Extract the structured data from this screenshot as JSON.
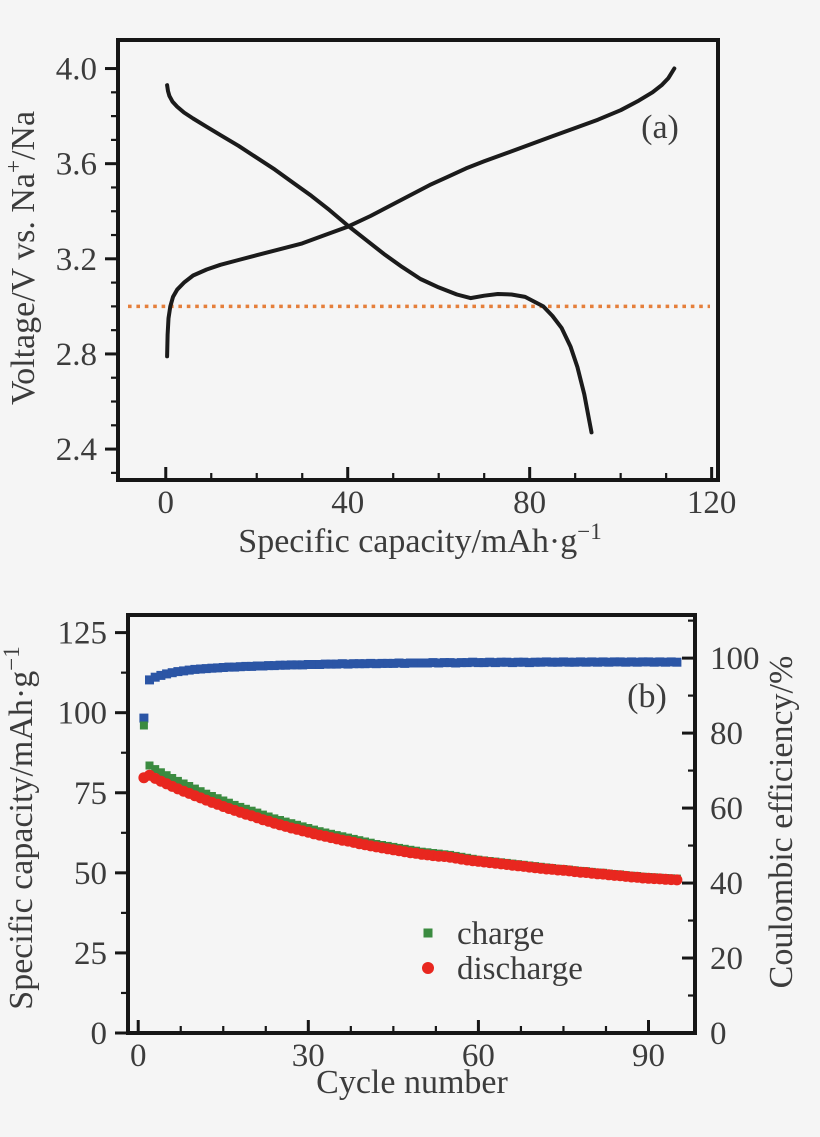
{
  "figure": {
    "background": "#f5f5f5",
    "axis_color": "#161616",
    "text_color": "#3c3c3c"
  },
  "chart_data": [
    {
      "id": "panel-a",
      "type": "line",
      "panel_label": "(a)",
      "xlabel_parts": [
        "Specific capacity/mAh·g",
        {
          "sup": "−1"
        }
      ],
      "ylabel_parts": [
        "Voltage/V vs. Na",
        {
          "sup": "+"
        },
        "/Na"
      ],
      "xlim": [
        -10.5,
        121.4
      ],
      "ylim": [
        2.27,
        4.12
      ],
      "grid": false,
      "x_ticks": {
        "major": [
          {
            "v": 0,
            "label": "0"
          },
          {
            "v": 40,
            "label": "40"
          },
          {
            "v": 80,
            "label": "80"
          },
          {
            "v": 120,
            "label": "120"
          }
        ],
        "minor": [
          10,
          20,
          30,
          50,
          60,
          70,
          90,
          100,
          110
        ]
      },
      "y_ticks": {
        "major": [
          {
            "v": 2.4,
            "label": "2.4"
          },
          {
            "v": 2.8,
            "label": "2.8"
          },
          {
            "v": 3.2,
            "label": "3.2"
          },
          {
            "v": 3.6,
            "label": "3.6"
          },
          {
            "v": 4.0,
            "label": "4.0"
          }
        ],
        "minor": [
          2.3,
          2.5,
          2.6,
          2.7,
          2.9,
          3.0,
          3.1,
          3.3,
          3.4,
          3.5,
          3.7,
          3.8,
          3.9
        ]
      },
      "reference_line": {
        "y": 3.0,
        "color": "#e57f3b",
        "style": "dotted"
      },
      "series": [
        {
          "name": "charge-curve",
          "color": "#1b1b1b",
          "points": [
            [
              0.3,
              2.79
            ],
            [
              0.4,
              2.88
            ],
            [
              0.6,
              2.95
            ],
            [
              1.0,
              3.0
            ],
            [
              1.6,
              3.04
            ],
            [
              2.5,
              3.07
            ],
            [
              4,
              3.1
            ],
            [
              6,
              3.13
            ],
            [
              9,
              3.155
            ],
            [
              12,
              3.175
            ],
            [
              16,
              3.195
            ],
            [
              20,
              3.215
            ],
            [
              25,
              3.24
            ],
            [
              30,
              3.265
            ],
            [
              35,
              3.3
            ],
            [
              40,
              3.335
            ],
            [
              45,
              3.38
            ],
            [
              50,
              3.43
            ],
            [
              54,
              3.47
            ],
            [
              58,
              3.51
            ],
            [
              62,
              3.545
            ],
            [
              66,
              3.58
            ],
            [
              70,
              3.61
            ],
            [
              75,
              3.645
            ],
            [
              80,
              3.68
            ],
            [
              85,
              3.715
            ],
            [
              90,
              3.75
            ],
            [
              95,
              3.785
            ],
            [
              100,
              3.825
            ],
            [
              104,
              3.865
            ],
            [
              107,
              3.9
            ],
            [
              109,
              3.93
            ],
            [
              110.5,
              3.96
            ],
            [
              111.8,
              4.0
            ]
          ]
        },
        {
          "name": "discharge-curve",
          "color": "#1b1b1b",
          "points": [
            [
              0.3,
              3.93
            ],
            [
              0.5,
              3.905
            ],
            [
              0.8,
              3.885
            ],
            [
              1.5,
              3.86
            ],
            [
              2.5,
              3.84
            ],
            [
              4,
              3.815
            ],
            [
              6,
              3.79
            ],
            [
              9,
              3.755
            ],
            [
              12,
              3.72
            ],
            [
              16,
              3.675
            ],
            [
              20,
              3.625
            ],
            [
              24,
              3.575
            ],
            [
              28,
              3.52
            ],
            [
              32,
              3.465
            ],
            [
              36,
              3.405
            ],
            [
              40,
              3.34
            ],
            [
              44,
              3.28
            ],
            [
              48,
              3.22
            ],
            [
              52,
              3.165
            ],
            [
              56,
              3.115
            ],
            [
              60,
              3.08
            ],
            [
              64,
              3.05
            ],
            [
              67,
              3.035
            ],
            [
              70,
              3.045
            ],
            [
              73,
              3.052
            ],
            [
              76,
              3.05
            ],
            [
              79,
              3.04
            ],
            [
              81,
              3.02
            ],
            [
              83,
              3.0
            ],
            [
              85,
              2.96
            ],
            [
              87,
              2.91
            ],
            [
              89,
              2.83
            ],
            [
              90.5,
              2.745
            ],
            [
              92,
              2.63
            ],
            [
              93,
              2.53
            ],
            [
              93.6,
              2.47
            ]
          ]
        }
      ]
    },
    {
      "id": "panel-b",
      "type": "scatter",
      "panel_label": "(b)",
      "xlabel": "Cycle number",
      "ylabel_left_parts": [
        "Specific capacity/mAh·g",
        {
          "sup": "−1"
        }
      ],
      "ylabel_right": "Coulombic efficiency/%",
      "xlim": [
        -1.8,
        98.2
      ],
      "ylim_left": [
        0,
        130.5
      ],
      "ylim_right": [
        0,
        111.5
      ],
      "grid": false,
      "x_ticks": {
        "major": [
          {
            "v": 0,
            "label": "0"
          },
          {
            "v": 30,
            "label": "30"
          },
          {
            "v": 60,
            "label": "60"
          },
          {
            "v": 90,
            "label": "90"
          }
        ],
        "minor": [
          7.5,
          15,
          22.5,
          37.5,
          45,
          52.5,
          67.5,
          75,
          82.5
        ]
      },
      "y_left_ticks": {
        "major": [
          {
            "v": 0,
            "label": "0"
          },
          {
            "v": 25,
            "label": "25"
          },
          {
            "v": 50,
            "label": "50"
          },
          {
            "v": 75,
            "label": "75"
          },
          {
            "v": 100,
            "label": "100"
          },
          {
            "v": 125,
            "label": "125"
          }
        ],
        "minor": [
          12.5,
          37.5,
          62.5,
          87.5,
          112.5
        ]
      },
      "y_right_ticks": {
        "major": [
          {
            "v": 0,
            "label": "0"
          },
          {
            "v": 20,
            "label": "20"
          },
          {
            "v": 40,
            "label": "40"
          },
          {
            "v": 60,
            "label": "60"
          },
          {
            "v": 80,
            "label": "80"
          },
          {
            "v": 100,
            "label": "100"
          }
        ],
        "minor": [
          10,
          30,
          50,
          70,
          90,
          110
        ]
      },
      "legend": [
        {
          "label": "charge",
          "marker": "square",
          "color": "#3b8b40"
        },
        {
          "label": "discharge",
          "marker": "circle",
          "color": "#e8271f"
        }
      ],
      "series": [
        {
          "name": "coulombic-efficiency",
          "axis": "right",
          "marker": "square",
          "size": 9,
          "color": "#2b55a5",
          "cycle_start": 1,
          "values": [
            84.0,
            94.2,
            94.9,
            95.4,
            95.8,
            96.1,
            96.4,
            96.6,
            96.8,
            97.0,
            97.1,
            97.2,
            97.3,
            97.4,
            97.5,
            97.6,
            97.6,
            97.7,
            97.8,
            97.8,
            97.9,
            97.9,
            98.0,
            98.0,
            98.1,
            98.1,
            98.2,
            98.2,
            98.2,
            98.3,
            98.3,
            98.3,
            98.4,
            98.4,
            98.4,
            98.5,
            98.4,
            98.5,
            98.5,
            98.5,
            98.6,
            98.5,
            98.6,
            98.6,
            98.6,
            98.7,
            98.6,
            98.7,
            98.7,
            98.7,
            98.7,
            98.8,
            98.7,
            98.8,
            98.8,
            98.7,
            98.8,
            98.8,
            98.9,
            98.8,
            98.8,
            98.9,
            98.8,
            98.9,
            98.9,
            98.8,
            98.9,
            98.9,
            98.8,
            98.9,
            98.9,
            99.0,
            98.9,
            98.9,
            99.0,
            98.9,
            98.9,
            99.0,
            98.9,
            99.0,
            98.9,
            99.0,
            98.9,
            99.0,
            99.0,
            98.9,
            99.0,
            98.9,
            99.0,
            99.0,
            98.9,
            99.0,
            98.9,
            99.0,
            98.9
          ]
        },
        {
          "name": "charge-capacity",
          "axis": "left",
          "marker": "square",
          "size": 8,
          "color": "#3b8b40",
          "cycle_start": 1,
          "values": [
            96.0,
            83.5,
            82.4,
            81.4,
            80.5,
            79.6,
            78.7,
            77.9,
            77.1,
            76.3,
            75.5,
            74.7,
            74.0,
            73.3,
            72.6,
            71.9,
            71.2,
            70.6,
            70.0,
            69.4,
            68.8,
            68.2,
            67.6,
            67.0,
            66.5,
            66.0,
            65.5,
            65.0,
            64.5,
            64.0,
            63.5,
            63.0,
            62.6,
            62.2,
            61.8,
            61.4,
            61.0,
            60.6,
            60.2,
            59.8,
            59.4,
            59.0,
            58.7,
            58.4,
            58.1,
            57.8,
            57.5,
            57.2,
            56.9,
            56.6,
            56.4,
            56.2,
            56.0,
            55.8,
            55.6,
            55.3,
            55.0,
            54.7,
            54.4,
            54.1,
            53.9,
            53.7,
            53.5,
            53.3,
            53.1,
            52.9,
            52.7,
            52.5,
            52.3,
            52.1,
            51.9,
            51.7,
            51.5,
            51.3,
            51.2,
            51.0,
            50.8,
            50.6,
            50.5,
            50.3,
            50.1,
            50.0,
            49.8,
            49.6,
            49.5,
            49.3,
            49.1,
            49.0,
            48.8,
            48.7,
            48.6,
            48.5,
            48.4,
            48.3,
            48.2
          ]
        },
        {
          "name": "discharge-capacity",
          "axis": "left",
          "marker": "circle",
          "size": 11,
          "color": "#e8271f",
          "cycle_start": 1,
          "values": [
            79.7,
            80.5,
            79.5,
            78.6,
            77.8,
            77.0,
            76.2,
            75.5,
            74.8,
            74.1,
            73.4,
            72.7,
            72.0,
            71.4,
            70.7,
            70.1,
            69.5,
            68.9,
            68.3,
            67.8,
            67.2,
            66.6,
            66.1,
            65.5,
            65.0,
            64.5,
            64.0,
            63.6,
            63.1,
            62.7,
            62.2,
            61.8,
            61.4,
            61.0,
            60.6,
            60.2,
            59.9,
            59.5,
            59.1,
            58.8,
            58.4,
            58.1,
            57.8,
            57.5,
            57.2,
            56.9,
            56.6,
            56.3,
            56.1,
            55.8,
            55.6,
            55.4,
            55.2,
            55.1,
            54.9,
            54.6,
            54.3,
            54.0,
            53.8,
            53.6,
            53.4,
            53.2,
            53.0,
            52.8,
            52.6,
            52.4,
            52.2,
            52.0,
            51.8,
            51.6,
            51.4,
            51.2,
            51.1,
            50.9,
            50.8,
            50.6,
            50.4,
            50.2,
            50.1,
            49.9,
            49.7,
            49.6,
            49.4,
            49.2,
            49.1,
            48.9,
            48.7,
            48.6,
            48.4,
            48.3,
            48.2,
            48.1,
            48.0,
            47.9,
            47.8
          ]
        }
      ]
    }
  ]
}
